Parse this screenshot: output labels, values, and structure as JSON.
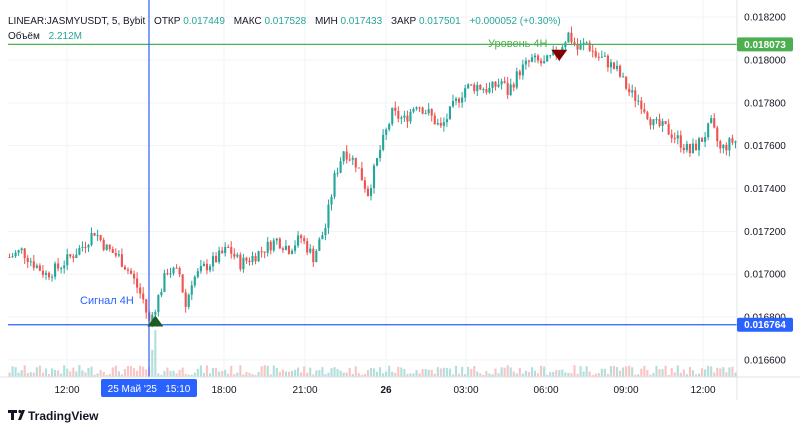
{
  "header": {
    "symbol": "LINEAR:JASMYUSDT, 5, Bybit",
    "open_label": "ОТКР",
    "open_value": "0.017449",
    "high_label": "МАКС",
    "high_value": "0.017528",
    "low_label": "МИН",
    "low_value": "0.017433",
    "close_label": "ЗАКР",
    "close_value": "0.017501",
    "change_value": "+0.000052 (+0.30%)",
    "volume_label": "Объём",
    "volume_value": "2.212M"
  },
  "annotations": {
    "level_label": "Уровень 4H",
    "signal_label": "Сигнал 4H",
    "level_price_tag": "0.018073",
    "signal_price_tag": "0.016764",
    "crosshair_time_tag": "25 Май '25   15:10"
  },
  "branding": {
    "logo_text": "TradingView"
  },
  "colors": {
    "up": "#26a69a",
    "down": "#ef5350",
    "level_line": "#4caf50",
    "signal_line": "#2962ff",
    "crosshair": "#2962ff",
    "marker_up": "#1b5e20",
    "marker_down": "#7f0000"
  },
  "chart_data": {
    "type": "candlestick",
    "y_axis": {
      "ticks": [
        "0.018200",
        "0.018000",
        "0.017800",
        "0.017600",
        "0.017400",
        "0.017200",
        "0.017000",
        "0.016800",
        "0.016600"
      ],
      "tick_values": [
        0.0182,
        0.018,
        0.0178,
        0.0176,
        0.0174,
        0.0172,
        0.017,
        0.0168,
        0.0166
      ],
      "ylim": [
        0.01652,
        0.01828
      ]
    },
    "x_axis": {
      "ticks": [
        "12:00",
        "18:00",
        "21:00",
        "26",
        "03:00",
        "06:00",
        "09:00",
        "12:00"
      ]
    },
    "price_path": [
      [
        0,
        0.01708
      ],
      [
        4,
        0.01711
      ],
      [
        8,
        0.01705
      ],
      [
        12,
        0.017
      ],
      [
        16,
        0.01703
      ],
      [
        20,
        0.01708
      ],
      [
        24,
        0.01713
      ],
      [
        28,
        0.0172
      ],
      [
        32,
        0.01712
      ],
      [
        36,
        0.01708
      ],
      [
        40,
        0.017
      ],
      [
        44,
        0.01688
      ],
      [
        46,
        0.01677
      ],
      [
        48,
        0.01685
      ],
      [
        52,
        0.01702
      ],
      [
        56,
        0.017
      ],
      [
        58,
        0.01685
      ],
      [
        60,
        0.01697
      ],
      [
        64,
        0.01703
      ],
      [
        68,
        0.01707
      ],
      [
        72,
        0.01712
      ],
      [
        76,
        0.01705
      ],
      [
        80,
        0.01708
      ],
      [
        84,
        0.01712
      ],
      [
        88,
        0.01716
      ],
      [
        92,
        0.01712
      ],
      [
        96,
        0.01717
      ],
      [
        100,
        0.01708
      ],
      [
        104,
        0.01722
      ],
      [
        107,
        0.01745
      ],
      [
        110,
        0.01758
      ],
      [
        114,
        0.01752
      ],
      [
        118,
        0.01738
      ],
      [
        122,
        0.01758
      ],
      [
        126,
        0.01775
      ],
      [
        130,
        0.01772
      ],
      [
        134,
        0.0178
      ],
      [
        138,
        0.01775
      ],
      [
        142,
        0.01768
      ],
      [
        146,
        0.01778
      ],
      [
        150,
        0.01787
      ],
      [
        154,
        0.01788
      ],
      [
        158,
        0.01786
      ],
      [
        162,
        0.0179
      ],
      [
        164,
        0.01785
      ],
      [
        168,
        0.01795
      ],
      [
        172,
        0.018
      ],
      [
        176,
        0.01798
      ],
      [
        180,
        0.01803
      ],
      [
        184,
        0.01812
      ],
      [
        187,
        0.01805
      ],
      [
        190,
        0.01808
      ],
      [
        193,
        0.01802
      ],
      [
        196,
        0.018
      ],
      [
        200,
        0.01795
      ],
      [
        204,
        0.01785
      ],
      [
        208,
        0.0178
      ],
      [
        212,
        0.0177
      ],
      [
        216,
        0.01768
      ],
      [
        220,
        0.01763
      ],
      [
        224,
        0.01757
      ],
      [
        228,
        0.01763
      ],
      [
        231,
        0.0177
      ],
      [
        234,
        0.01758
      ],
      [
        238,
        0.01762
      ]
    ],
    "marker_sell": {
      "index": 181,
      "price": 0.01802
    },
    "marker_buy": {
      "index": 48,
      "price": 0.01677
    },
    "level_price": 0.018073,
    "signal_price": 0.016764
  }
}
